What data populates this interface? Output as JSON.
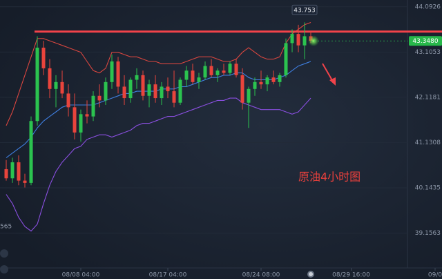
{
  "chart_data": {
    "type": "candlestick",
    "x": [
      1,
      2,
      3,
      4,
      5,
      6,
      7,
      8,
      9,
      10,
      11,
      12,
      13,
      14,
      15,
      16,
      17,
      18,
      19,
      20,
      21,
      22,
      23,
      24,
      25,
      26,
      27,
      28,
      29,
      30,
      31,
      32,
      33,
      34,
      35,
      36,
      37,
      38,
      39,
      40,
      41,
      42,
      43,
      44,
      45,
      46,
      47,
      48,
      49,
      50
    ],
    "open": [
      40.55,
      40.35,
      40.7,
      40.3,
      40.25,
      41.6,
      43.2,
      42.75,
      42.3,
      42.45,
      42.2,
      41.9,
      41.35,
      41.75,
      41.7,
      42.15,
      42.05,
      42.45,
      42.9,
      42.35,
      42.1,
      42.5,
      42.6,
      42.15,
      42.4,
      42.1,
      42.35,
      42.25,
      42.0,
      42.5,
      42.7,
      42.45,
      42.55,
      42.8,
      42.6,
      42.7,
      42.65,
      42.85,
      42.6,
      42.0,
      42.3,
      42.45,
      42.4,
      42.55,
      42.45,
      42.6,
      43.3,
      43.5,
      43.25,
      43.45
    ],
    "high": [
      40.75,
      40.8,
      40.85,
      40.45,
      41.7,
      43.45,
      43.35,
      42.95,
      42.6,
      42.7,
      42.4,
      42.2,
      41.85,
      42.05,
      42.25,
      42.4,
      42.55,
      43.05,
      43.0,
      42.6,
      42.55,
      42.75,
      42.7,
      42.5,
      42.6,
      42.45,
      42.55,
      42.7,
      42.55,
      42.8,
      42.85,
      42.65,
      42.9,
      42.95,
      42.75,
      42.85,
      42.9,
      42.95,
      42.75,
      42.35,
      42.55,
      42.7,
      42.6,
      42.7,
      42.65,
      43.4,
      43.6,
      43.7,
      43.753,
      43.55
    ],
    "low": [
      40.3,
      40.25,
      40.2,
      40.15,
      40.2,
      41.5,
      42.6,
      42.1,
      41.9,
      42.1,
      41.7,
      41.2,
      41.15,
      41.55,
      41.6,
      41.9,
      41.95,
      42.3,
      42.2,
      41.95,
      42.0,
      42.3,
      42.05,
      41.9,
      42.0,
      41.95,
      42.1,
      41.9,
      41.95,
      42.35,
      42.4,
      42.3,
      42.5,
      42.55,
      42.45,
      42.6,
      42.6,
      42.55,
      41.85,
      41.45,
      42.15,
      42.3,
      42.25,
      42.4,
      42.35,
      42.55,
      43.1,
      43.1,
      42.95,
      43.3
    ],
    "close": [
      40.35,
      40.7,
      40.3,
      40.25,
      41.6,
      43.2,
      42.75,
      42.3,
      42.45,
      42.2,
      41.9,
      41.35,
      41.75,
      41.7,
      42.15,
      42.05,
      42.45,
      42.9,
      42.35,
      42.1,
      42.5,
      42.6,
      42.15,
      42.4,
      42.1,
      42.35,
      42.25,
      42.0,
      42.5,
      42.7,
      42.45,
      42.55,
      42.8,
      42.6,
      42.7,
      42.65,
      42.85,
      42.6,
      42.0,
      42.3,
      42.45,
      42.4,
      42.55,
      42.45,
      42.6,
      43.3,
      43.5,
      43.25,
      43.45,
      43.348
    ],
    "up_color": "#2bc34f",
    "down_color": "#e9443c",
    "overlays": [
      {
        "color": "#d9463f",
        "values": [
          41.5,
          41.8,
          42.2,
          42.6,
          43.0,
          43.4,
          43.4,
          43.35,
          43.3,
          43.25,
          43.2,
          43.15,
          43.1,
          42.9,
          42.7,
          42.65,
          42.75,
          43.1,
          43.1,
          43.05,
          43.0,
          43.0,
          42.95,
          42.9,
          42.9,
          42.85,
          42.85,
          42.85,
          42.85,
          42.9,
          42.95,
          43.0,
          43.0,
          43.0,
          42.95,
          42.9,
          42.9,
          42.95,
          43.1,
          43.2,
          43.1,
          43.0,
          42.95,
          42.95,
          43.0,
          43.3,
          43.5,
          43.6,
          43.7,
          43.75
        ]
      },
      {
        "color": "#3f7fe0",
        "values": [
          40.8,
          40.9,
          41.0,
          41.1,
          41.25,
          41.45,
          41.6,
          41.7,
          41.8,
          41.9,
          41.95,
          41.95,
          41.95,
          41.95,
          41.95,
          42.0,
          42.05,
          42.1,
          42.15,
          42.2,
          42.2,
          42.25,
          42.25,
          42.25,
          42.25,
          42.3,
          42.3,
          42.3,
          42.35,
          42.35,
          42.4,
          42.45,
          42.5,
          42.55,
          42.55,
          42.6,
          42.6,
          42.65,
          42.65,
          42.55,
          42.5,
          42.5,
          42.5,
          42.5,
          42.55,
          42.6,
          42.7,
          42.8,
          42.85,
          42.9
        ]
      },
      {
        "color": "#8a4fe0",
        "values": [
          40.0,
          39.8,
          39.5,
          39.3,
          39.2,
          39.35,
          39.8,
          40.2,
          40.5,
          40.7,
          40.85,
          41.0,
          41.05,
          41.2,
          41.25,
          41.3,
          41.3,
          41.25,
          41.3,
          41.35,
          41.4,
          41.5,
          41.55,
          41.55,
          41.6,
          41.65,
          41.7,
          41.7,
          41.75,
          41.8,
          41.85,
          41.9,
          41.95,
          42.0,
          42.05,
          42.05,
          42.1,
          42.1,
          42.0,
          41.95,
          41.9,
          41.85,
          41.85,
          41.85,
          41.85,
          41.8,
          41.75,
          41.8,
          41.95,
          42.1
        ]
      }
    ],
    "resistance_level": 43.55,
    "resistance_color": "#f2434a",
    "xlim": [
      0,
      71
    ],
    "ylim": [
      38.26,
      44.24
    ],
    "yticks": [
      44.0926,
      43.1053,
      42.1181,
      41.1308,
      40.1435,
      39.1563
    ],
    "xticks": [
      {
        "value": 13,
        "label": "08/08 04:00"
      },
      {
        "value": 27,
        "label": "08/17 04:00"
      },
      {
        "value": 42,
        "label": "08/24 08:00"
      },
      {
        "value": 56.5,
        "label": "08/29 16:00"
      },
      {
        "value": 70,
        "label": "09/0"
      }
    ],
    "last_price_label": "43.3480",
    "peak_label": "43.753",
    "left_edge_label": "565",
    "annotation": "原油4小时图"
  }
}
